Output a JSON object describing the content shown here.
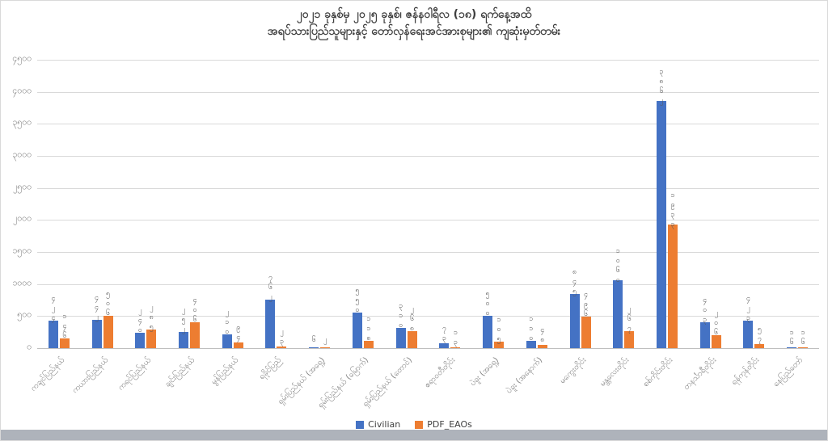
{
  "title": {
    "line1": "၂၀၂၁ ခုနှစ်မှ ၂၀၂၅ ခုနှစ်၊ ဇန်နဝါရီလ (၁၈) ရက်နေ့အထိ",
    "line2": "အရပ်သားပြည်သူများနှင့် တော်လှန်ရေးအင်အားစုများ၏ ကျဆုံးမှတ်တမ်း"
  },
  "legend": {
    "items": [
      {
        "label": "Civilian",
        "color": "#4472C4"
      },
      {
        "label": "PDF_EAOs",
        "color": "#ED7D31"
      }
    ],
    "position": "bottom"
  },
  "colors": {
    "civilian": "#4472C4",
    "pdf_eaos": "#ED7D31",
    "gridline": "#d9d9d9",
    "text_muted": "#7f7f7f",
    "title_text": "#3f3f3f"
  },
  "chart_data": {
    "type": "bar",
    "title": "၂၀၂၁ ခုနှစ်မှ ၂၀၂၅ ခုနှစ်၊ ဇန်နဝါရီလ (၁၈) ရက်နေ့အထိ အရပ်သားပြည်သူများနှင့် တော်လှန်ရေးအင်အားစုများ၏ ကျဆုံးမှတ်တမ်း",
    "xlabel": "",
    "ylabel": "",
    "ylim": [
      0,
      4500
    ],
    "ytick_interval": 500,
    "ytick_labels": [
      "၀",
      "၅၀၀",
      "၁၀၀၀",
      "၁၅၀၀",
      "၂၀၀၀",
      "၂၅၀၀",
      "၃၀၀၀",
      "၃၅၀၀",
      "၄၀၀၀",
      "၄၅၀၀"
    ],
    "grid": true,
    "legend_position": "bottom",
    "categories": [
      "ကချင်ပြည်နယ်",
      "ကယားပြည်နယ်",
      "ကရင်ပြည်နယ်",
      "ချင်းပြည်နယ်",
      "မွန်ပြည်နယ်",
      "ရခိုင်ပြည်",
      "ရှမ်းပြည်နယ် (အရှေ့)",
      "ရှမ်းပြည်နယ် (မြောက်)",
      "ရှမ်းပြည်နယ် (တောင်)",
      "ဧရာဝတီတိုင်း",
      "ပဲခူး (အရှေ့)",
      "ပဲခူး (အနောက်)",
      "မကွေးတိုင်း",
      "မန္တလေးတိုင်း",
      "စစ်ကိုင်းတိုင်း",
      "တနင်္သာရီတိုင်း",
      "ရန်ကုန်တိုင်း",
      "နေပြည်တော်"
    ],
    "series": [
      {
        "name": "Civilian",
        "color": "#4472C4",
        "values": [
          424,
          442,
          240,
          252,
          210,
          762,
          6,
          550,
          310,
          73,
          500,
          110,
          845,
          1060,
          3862,
          403,
          423,
          16
        ],
        "data_labels": [
          "၄၂၄",
          "၄၄၂",
          "၂၄၀",
          "၂၅၂",
          "၂၁၀",
          "၇၆၂",
          "၆",
          "၅၅၀",
          "၃၁၀",
          "၇၃",
          "၅၀၀",
          "၁၁၀",
          "၈၄၅",
          "၁၀၆၀",
          "၃၈၆၂",
          "၄၀၃",
          "၄၂၃",
          "၁၆"
        ]
      },
      {
        "name": "PDF_EAOs",
        "color": "#ED7D31",
        "values": [
          146,
          506,
          285,
          406,
          94,
          23,
          2,
          118,
          268,
          13,
          105,
          48,
          496,
          267,
          1933,
          206,
          57,
          16
        ],
        "data_labels": [
          "၁၄၆",
          "၅၀၆",
          "၂၈၅",
          "၄၀၆",
          "၉၄",
          "၂၃",
          "၂",
          "၁၁၈",
          "၂၆၈",
          "၁၃",
          "၁၀၅",
          "၄၈",
          "၄၉၆",
          "၂၆၇",
          "၁၉၃၃",
          "၂၀၆",
          "၅၇",
          "၁၆"
        ]
      }
    ]
  }
}
